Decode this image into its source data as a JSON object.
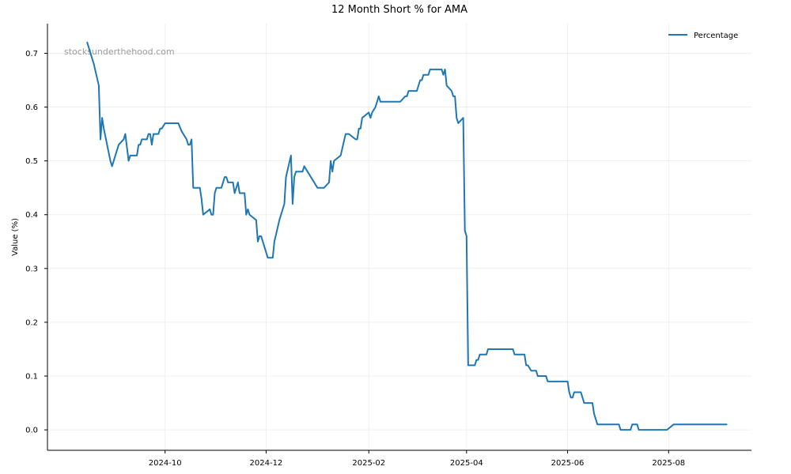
{
  "chart_data": {
    "type": "line",
    "title": "12 Month Short % for AMA",
    "xlabel": "",
    "ylabel": "Value (%)",
    "watermark": "stocksunderthehood.com",
    "ylim": [
      -0.038,
      0.755
    ],
    "xlim": [
      "2024-07-22",
      "2025-09-20"
    ],
    "y_ticks": [
      0.0,
      0.1,
      0.2,
      0.3,
      0.4,
      0.5,
      0.6,
      0.7
    ],
    "y_tick_labels": [
      "0.0",
      "0.1",
      "0.2",
      "0.3",
      "0.4",
      "0.5",
      "0.6",
      "0.7"
    ],
    "x_ticks": [
      "2024-10-01",
      "2024-12-01",
      "2025-02-01",
      "2025-04-01",
      "2025-06-01",
      "2025-08-01"
    ],
    "x_tick_labels": [
      "2024-10",
      "2024-12",
      "2025-02",
      "2025-04",
      "2025-06",
      "2025-08"
    ],
    "grid": true,
    "legend_position": "top-right",
    "colors": {
      "line": "#1f77b4",
      "grid": "#ececec",
      "axis": "#000000"
    },
    "series": [
      {
        "name": "Percentage",
        "points": [
          [
            "2024-08-15",
            0.72
          ],
          [
            "2024-08-17",
            0.7
          ],
          [
            "2024-08-19",
            0.68
          ],
          [
            "2024-08-22",
            0.64
          ],
          [
            "2024-08-23",
            0.54
          ],
          [
            "2024-08-24",
            0.58
          ],
          [
            "2024-08-25",
            0.56
          ],
          [
            "2024-08-27",
            0.53
          ],
          [
            "2024-08-29",
            0.5
          ],
          [
            "2024-08-30",
            0.49
          ],
          [
            "2024-09-01",
            0.51
          ],
          [
            "2024-09-03",
            0.53
          ],
          [
            "2024-09-06",
            0.54
          ],
          [
            "2024-09-07",
            0.55
          ],
          [
            "2024-09-09",
            0.5
          ],
          [
            "2024-09-10",
            0.51
          ],
          [
            "2024-09-14",
            0.51
          ],
          [
            "2024-09-15",
            0.53
          ],
          [
            "2024-09-16",
            0.53
          ],
          [
            "2024-09-17",
            0.54
          ],
          [
            "2024-09-20",
            0.54
          ],
          [
            "2024-09-21",
            0.55
          ],
          [
            "2024-09-22",
            0.55
          ],
          [
            "2024-09-23",
            0.53
          ],
          [
            "2024-09-24",
            0.55
          ],
          [
            "2024-09-27",
            0.55
          ],
          [
            "2024-09-28",
            0.56
          ],
          [
            "2024-09-29",
            0.56
          ],
          [
            "2024-10-01",
            0.57
          ],
          [
            "2024-10-09",
            0.57
          ],
          [
            "2024-10-11",
            0.555
          ],
          [
            "2024-10-14",
            0.54
          ],
          [
            "2024-10-15",
            0.53
          ],
          [
            "2024-10-16",
            0.53
          ],
          [
            "2024-10-17",
            0.54
          ],
          [
            "2024-10-18",
            0.45
          ],
          [
            "2024-10-22",
            0.45
          ],
          [
            "2024-10-23",
            0.43
          ],
          [
            "2024-10-24",
            0.4
          ],
          [
            "2024-10-28",
            0.41
          ],
          [
            "2024-10-29",
            0.4
          ],
          [
            "2024-10-30",
            0.4
          ],
          [
            "2024-10-31",
            0.44
          ],
          [
            "2024-11-01",
            0.45
          ],
          [
            "2024-11-04",
            0.45
          ],
          [
            "2024-11-06",
            0.47
          ],
          [
            "2024-11-07",
            0.47
          ],
          [
            "2024-11-08",
            0.46
          ],
          [
            "2024-11-11",
            0.46
          ],
          [
            "2024-11-12",
            0.44
          ],
          [
            "2024-11-14",
            0.46
          ],
          [
            "2024-11-15",
            0.44
          ],
          [
            "2024-11-18",
            0.44
          ],
          [
            "2024-11-19",
            0.4
          ],
          [
            "2024-11-20",
            0.41
          ],
          [
            "2024-11-21",
            0.4
          ],
          [
            "2024-11-25",
            0.39
          ],
          [
            "2024-11-26",
            0.35
          ],
          [
            "2024-11-27",
            0.36
          ],
          [
            "2024-11-28",
            0.36
          ],
          [
            "2024-12-02",
            0.32
          ],
          [
            "2024-12-05",
            0.32
          ],
          [
            "2024-12-06",
            0.35
          ],
          [
            "2024-12-09",
            0.39
          ],
          [
            "2024-12-12",
            0.42
          ],
          [
            "2024-12-13",
            0.47
          ],
          [
            "2024-12-16",
            0.51
          ],
          [
            "2024-12-17",
            0.42
          ],
          [
            "2024-12-18",
            0.47
          ],
          [
            "2024-12-19",
            0.48
          ],
          [
            "2024-12-23",
            0.48
          ],
          [
            "2024-12-24",
            0.49
          ],
          [
            "2025-01-01",
            0.45
          ],
          [
            "2025-01-05",
            0.45
          ],
          [
            "2025-01-08",
            0.46
          ],
          [
            "2025-01-09",
            0.5
          ],
          [
            "2025-01-10",
            0.48
          ],
          [
            "2025-01-11",
            0.5
          ],
          [
            "2025-01-15",
            0.51
          ],
          [
            "2025-01-18",
            0.55
          ],
          [
            "2025-01-20",
            0.55
          ],
          [
            "2025-01-24",
            0.54
          ],
          [
            "2025-01-25",
            0.54
          ],
          [
            "2025-01-26",
            0.56
          ],
          [
            "2025-01-27",
            0.56
          ],
          [
            "2025-01-28",
            0.58
          ],
          [
            "2025-02-01",
            0.59
          ],
          [
            "2025-02-02",
            0.58
          ],
          [
            "2025-02-03",
            0.59
          ],
          [
            "2025-02-05",
            0.6
          ],
          [
            "2025-02-07",
            0.62
          ],
          [
            "2025-02-08",
            0.61
          ],
          [
            "2025-02-20",
            0.61
          ],
          [
            "2025-02-23",
            0.62
          ],
          [
            "2025-02-24",
            0.62
          ],
          [
            "2025-02-25",
            0.63
          ],
          [
            "2025-03-02",
            0.63
          ],
          [
            "2025-03-04",
            0.65
          ],
          [
            "2025-03-05",
            0.65
          ],
          [
            "2025-03-06",
            0.66
          ],
          [
            "2025-03-09",
            0.66
          ],
          [
            "2025-03-10",
            0.67
          ],
          [
            "2025-03-17",
            0.67
          ],
          [
            "2025-03-18",
            0.66
          ],
          [
            "2025-03-19",
            0.67
          ],
          [
            "2025-03-20",
            0.64
          ],
          [
            "2025-03-23",
            0.63
          ],
          [
            "2025-03-24",
            0.62
          ],
          [
            "2025-03-25",
            0.62
          ],
          [
            "2025-03-26",
            0.58
          ],
          [
            "2025-03-27",
            0.57
          ],
          [
            "2025-03-30",
            0.58
          ],
          [
            "2025-03-31",
            0.37
          ],
          [
            "2025-04-01",
            0.36
          ],
          [
            "2025-04-02",
            0.12
          ],
          [
            "2025-04-06",
            0.12
          ],
          [
            "2025-04-07",
            0.13
          ],
          [
            "2025-04-08",
            0.13
          ],
          [
            "2025-04-09",
            0.14
          ],
          [
            "2025-04-13",
            0.14
          ],
          [
            "2025-04-14",
            0.15
          ],
          [
            "2025-04-29",
            0.15
          ],
          [
            "2025-04-30",
            0.14
          ],
          [
            "2025-05-06",
            0.14
          ],
          [
            "2025-05-07",
            0.12
          ],
          [
            "2025-05-08",
            0.12
          ],
          [
            "2025-05-10",
            0.11
          ],
          [
            "2025-05-13",
            0.11
          ],
          [
            "2025-05-14",
            0.1
          ],
          [
            "2025-05-19",
            0.1
          ],
          [
            "2025-05-20",
            0.09
          ],
          [
            "2025-06-01",
            0.09
          ],
          [
            "2025-06-02",
            0.07
          ],
          [
            "2025-06-03",
            0.06
          ],
          [
            "2025-06-04",
            0.06
          ],
          [
            "2025-06-05",
            0.07
          ],
          [
            "2025-06-09",
            0.07
          ],
          [
            "2025-06-11",
            0.05
          ],
          [
            "2025-06-16",
            0.05
          ],
          [
            "2025-06-17",
            0.03
          ],
          [
            "2025-06-19",
            0.01
          ],
          [
            "2025-07-02",
            0.01
          ],
          [
            "2025-07-03",
            0.0
          ],
          [
            "2025-07-09",
            0.0
          ],
          [
            "2025-07-10",
            0.01
          ],
          [
            "2025-07-13",
            0.01
          ],
          [
            "2025-07-14",
            0.0
          ],
          [
            "2025-07-31",
            0.0
          ],
          [
            "2025-08-04",
            0.01
          ],
          [
            "2025-09-05",
            0.01
          ]
        ]
      }
    ]
  }
}
